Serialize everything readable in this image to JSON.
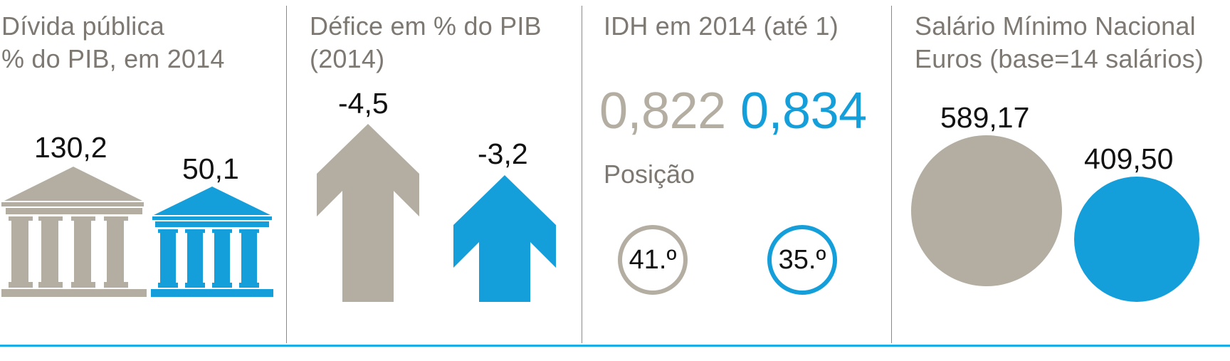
{
  "colors": {
    "gray": "#b3aea1",
    "blue": "#149fdb",
    "text_gray": "#7d7872"
  },
  "debt": {
    "title_line1": "Dívida pública",
    "title_line2": "% do PIB, em 2014",
    "gray_value": "130,2",
    "blue_value": "50,1",
    "icon": "building-columns-icon"
  },
  "deficit": {
    "title_line1": "Défice em % do PIB",
    "title_line2": "(2014)",
    "gray_value": "-4,5",
    "blue_value": "-3,2",
    "icon": "arrow-up-icon"
  },
  "hdi": {
    "title": "IDH em 2014 (até 1)",
    "gray_value": "0,822",
    "blue_value": "0,834",
    "position_label": "Posição",
    "gray_rank": "41.º",
    "blue_rank": "35.º"
  },
  "wage": {
    "title_line1": "Salário Mínimo Nacional",
    "title_line2": "Euros (base=14 salários)",
    "gray_value": "589,17",
    "blue_value": "409,50"
  }
}
